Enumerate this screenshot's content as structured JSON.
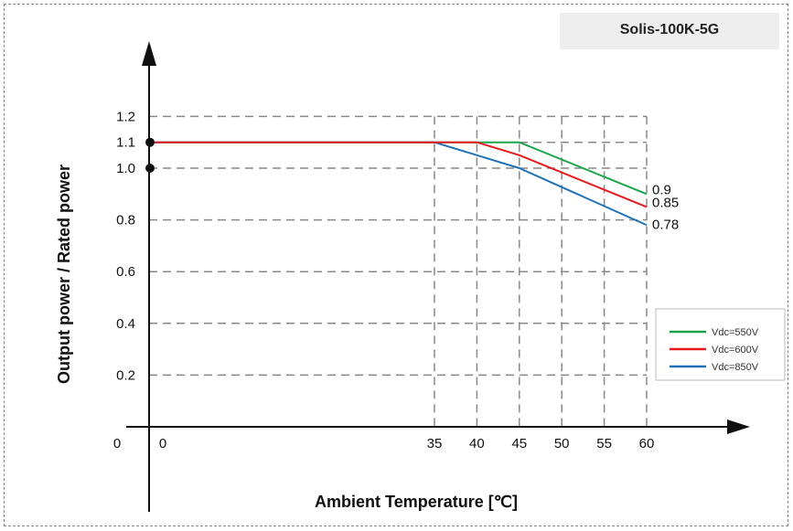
{
  "model_label": "Solis-100K-5G",
  "chart_data": {
    "type": "line",
    "xlabel": "Ambient Temperature [℃]",
    "ylabel": "Output power / Rated power",
    "x_ticks": [
      "0",
      "35",
      "40",
      "45",
      "50",
      "55",
      "60"
    ],
    "x_tick_values": [
      0,
      35,
      40,
      45,
      50,
      55,
      60
    ],
    "y_ticks": [
      "0.2",
      "0.4",
      "0.6",
      "0.8",
      "1.0",
      "1.1",
      "1.2"
    ],
    "y_tick_values": [
      0.2,
      0.4,
      0.6,
      0.8,
      1.0,
      1.1,
      1.2
    ],
    "origin_label": "0",
    "grid": true,
    "legend_position": "right",
    "series": [
      {
        "name": "Vdc=550V",
        "color": "#1aa64b",
        "x": [
          0,
          35,
          40,
          45,
          60
        ],
        "y": [
          1.1,
          1.1,
          1.1,
          1.1,
          0.9
        ],
        "end_label": "0.9"
      },
      {
        "name": "Vdc=600V",
        "color": "#e41a1c",
        "x": [
          0,
          35,
          40,
          45,
          60
        ],
        "y": [
          1.1,
          1.1,
          1.1,
          1.05,
          0.85
        ],
        "end_label": "0.85"
      },
      {
        "name": "Vdc=850V",
        "color": "#1f72b8",
        "x": [
          0,
          35,
          45,
          60
        ],
        "y": [
          1.1,
          1.1,
          1.0,
          0.78
        ],
        "end_label": "0.78"
      }
    ],
    "markers": [
      {
        "x": 0,
        "y": 1.1
      },
      {
        "x": 0,
        "y": 1.0
      }
    ]
  }
}
